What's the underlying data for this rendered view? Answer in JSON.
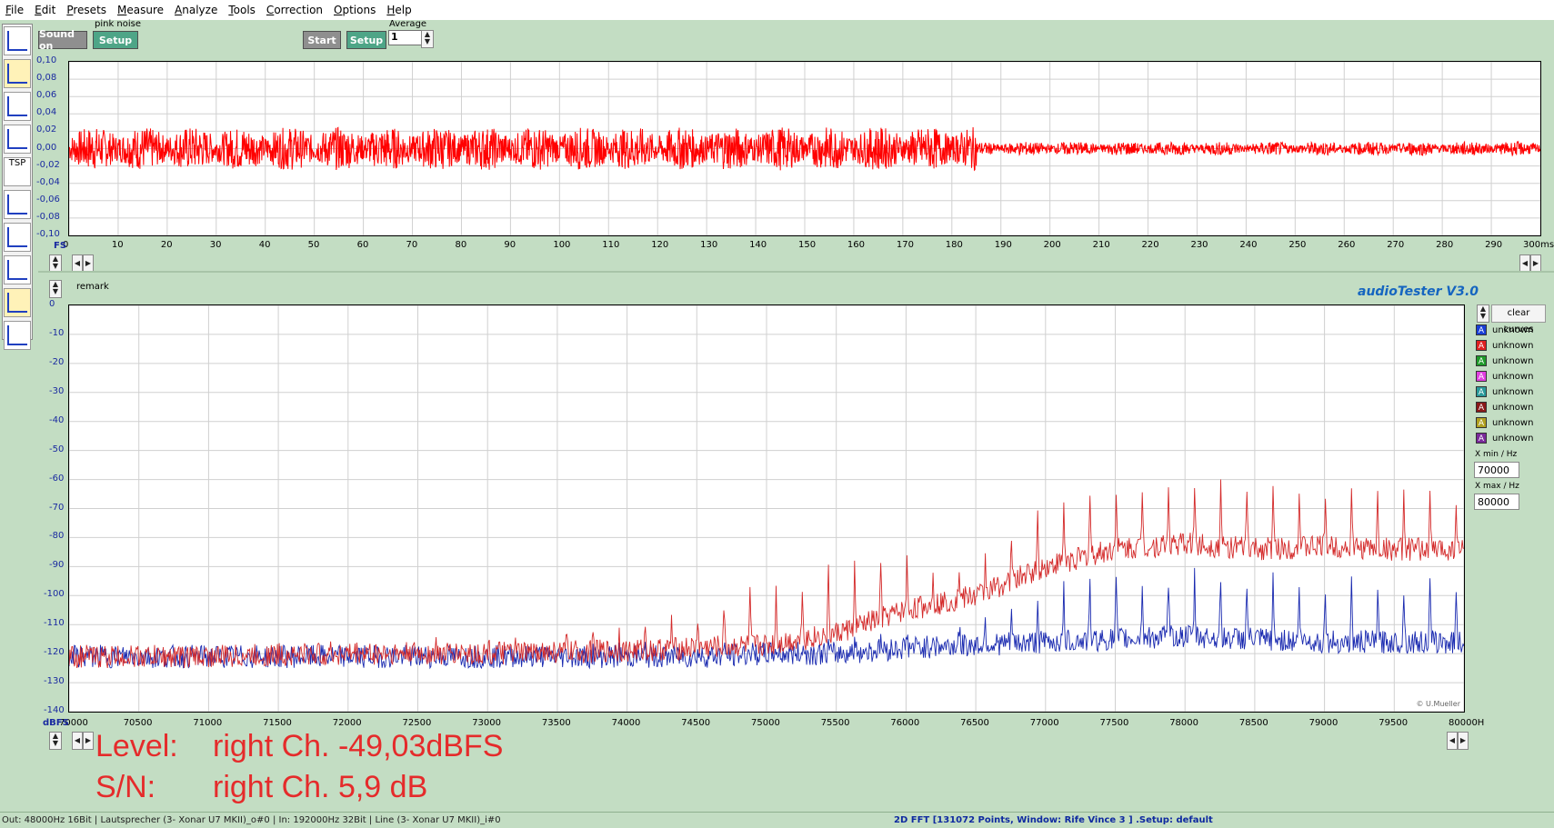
{
  "menu": [
    "File",
    "Edit",
    "Presets",
    "Measure",
    "Analyze",
    "Tools",
    "Correction",
    "Options",
    "Help"
  ],
  "generator": {
    "label": "pink noise",
    "sound_on": "Sound on",
    "setup": "Setup"
  },
  "acquisition": {
    "start": "Start",
    "setup": "Setup",
    "average_label": "Average",
    "average_value": "1"
  },
  "toolbar": {
    "tsp_label": "TSP"
  },
  "waveform": {
    "y_ticks": [
      "0,10",
      "0,08",
      "0,06",
      "0,04",
      "0,02",
      "0,00",
      "-0,02",
      "-0,04",
      "-0,06",
      "-0,08",
      "-0,10"
    ],
    "x_ticks": [
      "0",
      "10",
      "20",
      "30",
      "40",
      "50",
      "60",
      "70",
      "80",
      "90",
      "100",
      "110",
      "120",
      "130",
      "140",
      "150",
      "160",
      "170",
      "180",
      "190",
      "200",
      "210",
      "220",
      "230",
      "240",
      "250",
      "260",
      "270",
      "280",
      "290",
      "300ms"
    ],
    "y_unit": "FS",
    "color": "#ff0000"
  },
  "spectrum": {
    "remark": "remark",
    "brand": "audioTester  V3.0",
    "copyright": "© U.Mueller",
    "y_unit": "dBFS",
    "y_ticks": [
      "0",
      "-10",
      "-20",
      "-30",
      "-40",
      "-50",
      "-60",
      "-70",
      "-80",
      "-90",
      "-100",
      "-110",
      "-120",
      "-130",
      "-140"
    ],
    "x_ticks": [
      "70000",
      "70500",
      "71000",
      "71500",
      "72000",
      "72500",
      "73000",
      "73500",
      "74000",
      "74500",
      "75000",
      "75500",
      "76000",
      "76500",
      "77000",
      "77500",
      "78000",
      "78500",
      "79000",
      "79500",
      "80000H"
    ]
  },
  "legend": {
    "clear": "clear curves",
    "items": [
      {
        "label": "unknown",
        "color": "#1a3fd6"
      },
      {
        "label": "unknown",
        "color": "#e02020"
      },
      {
        "label": "unknown",
        "color": "#1f9a2a"
      },
      {
        "label": "unknown",
        "color": "#e040e0"
      },
      {
        "label": "unknown",
        "color": "#2a9a9a"
      },
      {
        "label": "unknown",
        "color": "#8a1a1a"
      },
      {
        "label": "unknown",
        "color": "#b0a020"
      },
      {
        "label": "unknown",
        "color": "#7a2a9a"
      }
    ]
  },
  "xrange": {
    "min_label": "X min / Hz",
    "min": "70000",
    "max_label": "X max / Hz",
    "max": "80000"
  },
  "readout": {
    "level_label": "Level:",
    "level_value": "right Ch. -49,03dBFS",
    "sn_label": "S/N:",
    "sn_value": "right Ch. 5,9 dB"
  },
  "status": {
    "left": "Out: 48000Hz 16Bit  | Lautsprecher (3- Xonar U7 MKII)_o#0 | In: 192000Hz 32Bit  | Line (3- Xonar U7 MKII)_i#0",
    "right": "2D FFT [131072 Points, Window: Rife Vince 3 ]  .Setup:  default"
  },
  "chart_data": [
    {
      "type": "line",
      "title": "",
      "xlabel": "",
      "ylabel": "FS",
      "xlim": [
        0,
        300
      ],
      "ylim": [
        -0.1,
        0.1
      ],
      "grid": true,
      "series": [
        {
          "envelope_segments": [
            {
              "x_start": 0,
              "x_end": 185,
              "amplitude": 0.025
            },
            {
              "x_start": 185,
              "x_end": 300,
              "amplitude": 0.008
            }
          ]
        }
      ]
    },
    {
      "type": "line",
      "title": "",
      "xlabel": "",
      "ylabel": "dBFS",
      "xlim": [
        70000,
        80000
      ],
      "ylim": [
        -140,
        0
      ],
      "grid": true,
      "series": [
        {
          "color": "#d42a2a",
          "x": [
            70000,
            71000,
            72000,
            73000,
            74000,
            74500,
            75000,
            75500,
            76000,
            76500,
            77000,
            77500,
            78000,
            78500,
            79000,
            79500,
            80000
          ],
          "floor": [
            -121,
            -121,
            -120,
            -120,
            -119,
            -118,
            -117,
            -113,
            -105,
            -100,
            -90,
            -84,
            -82,
            -84,
            -83,
            -84,
            -84
          ],
          "peaks": [
            -121,
            -121,
            -119,
            -117,
            -112,
            -107,
            -98,
            -92,
            -89,
            -90,
            -70,
            -62,
            -62,
            -63,
            -64,
            -67,
            -66
          ]
        },
        {
          "color": "#1a2ab0",
          "x": [
            70000,
            71000,
            72000,
            73000,
            74000,
            74500,
            75000,
            75500,
            76000,
            76500,
            77000,
            77500,
            78000,
            78500,
            79000,
            79500,
            80000
          ],
          "floor": [
            -121,
            -121,
            -121,
            -121,
            -121,
            -121,
            -120,
            -120,
            -118,
            -117,
            -116,
            -115,
            -114,
            -115,
            -116,
            -116,
            -116
          ],
          "peaks": [
            -121,
            -121,
            -121,
            -120,
            -119,
            -119,
            -118,
            -117,
            -113,
            -110,
            -100,
            -95,
            -93,
            -95,
            -97,
            -97,
            -97
          ]
        }
      ]
    }
  ]
}
